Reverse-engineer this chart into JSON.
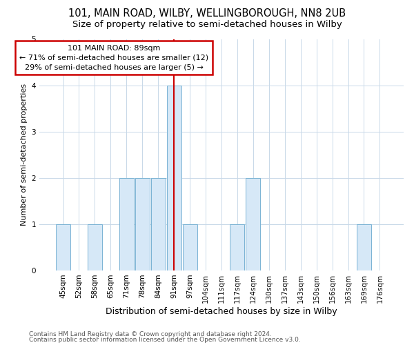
{
  "title1": "101, MAIN ROAD, WILBY, WELLINGBOROUGH, NN8 2UB",
  "title2": "Size of property relative to semi-detached houses in Wilby",
  "xlabel": "Distribution of semi-detached houses by size in Wilby",
  "ylabel": "Number of semi-detached properties",
  "categories": [
    "45sqm",
    "52sqm",
    "58sqm",
    "65sqm",
    "71sqm",
    "78sqm",
    "84sqm",
    "91sqm",
    "97sqm",
    "104sqm",
    "111sqm",
    "117sqm",
    "124sqm",
    "130sqm",
    "137sqm",
    "143sqm",
    "150sqm",
    "156sqm",
    "163sqm",
    "169sqm",
    "176sqm"
  ],
  "values": [
    1,
    0,
    1,
    0,
    2,
    2,
    2,
    4,
    1,
    0,
    0,
    1,
    2,
    0,
    0,
    0,
    0,
    0,
    0,
    1,
    0
  ],
  "highlight_index": 7,
  "bar_color": "#d6e8f7",
  "bar_edge_color": "#7ab3d4",
  "highlight_line_color": "#cc0000",
  "ylim": [
    0,
    5
  ],
  "yticks": [
    0,
    1,
    2,
    3,
    4,
    5
  ],
  "annotation_line1": "101 MAIN ROAD: 89sqm",
  "annotation_line2": "← 71% of semi-detached houses are smaller (12)",
  "annotation_line3": "29% of semi-detached houses are larger (5) →",
  "annotation_box_color": "#ffffff",
  "annotation_box_edge": "#cc0000",
  "footer1": "Contains HM Land Registry data © Crown copyright and database right 2024.",
  "footer2": "Contains public sector information licensed under the Open Government Licence v3.0.",
  "bg_color": "#ffffff",
  "grid_color": "#c8d8e8",
  "title1_fontsize": 10.5,
  "title2_fontsize": 9.5,
  "xlabel_fontsize": 9,
  "ylabel_fontsize": 8,
  "tick_fontsize": 7.5,
  "annotation_fontsize": 8,
  "footer_fontsize": 6.5
}
